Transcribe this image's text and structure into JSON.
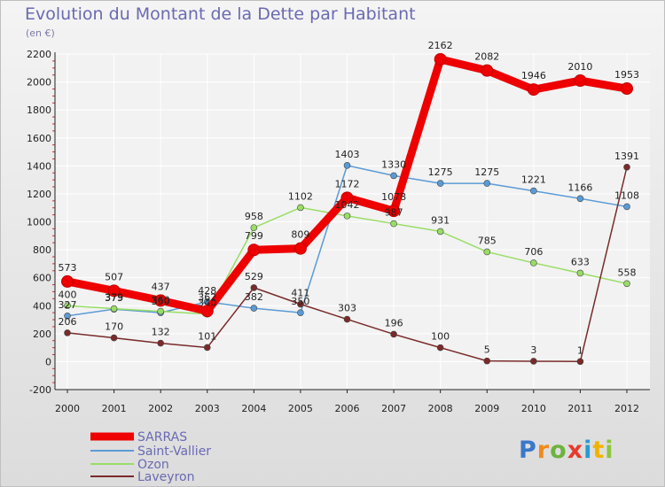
{
  "header": {
    "title": "Evolution du Montant de la Dette par Habitant",
    "subtitle": "(en €)"
  },
  "logo_text": "Proxiti",
  "colors": {
    "background": "#e8e8e8",
    "plot_background": "#f2f2f2",
    "axis": "#222222",
    "grid": "#ffffff",
    "SARRAS": "#ee0000",
    "Saint-Vallier": "#5b9bd5",
    "Ozon": "#99dd66",
    "Laveyron": "#7a2a2a"
  },
  "chart_data": {
    "type": "line",
    "x": [
      "2000",
      "2001",
      "2002",
      "2003",
      "2004",
      "2005",
      "2006",
      "2007",
      "2008",
      "2009",
      "2010",
      "2011",
      "2012"
    ],
    "ylim": [
      -200,
      2200
    ],
    "yticks": [
      -200,
      0,
      200,
      400,
      600,
      800,
      1000,
      1200,
      1400,
      1600,
      1800,
      2000,
      2200
    ],
    "grid": true,
    "legend_position": "bottom-left",
    "series": [
      {
        "name": "SARRAS",
        "values": [
          573,
          507,
          437,
          362,
          799,
          809,
          1172,
          1078,
          2162,
          2082,
          1946,
          2010,
          1953
        ],
        "labels": [
          "573",
          "507",
          "437",
          "362",
          "799",
          "809",
          "1172",
          "1078",
          "2162",
          "2082",
          "1946",
          "2010",
          "1953"
        ]
      },
      {
        "name": "Saint-Vallier",
        "values": [
          327,
          375,
          350,
          428,
          382,
          350,
          1403,
          1330,
          1275,
          1275,
          1221,
          1166,
          1108
        ],
        "labels": [
          "327",
          "375",
          "350",
          "428",
          "382",
          "350",
          "1403",
          "1330",
          "1275",
          "1275",
          "1221",
          "1166",
          "1108"
        ]
      },
      {
        "name": "Ozon",
        "values": [
          400,
          379,
          360,
          340,
          958,
          1102,
          1042,
          987,
          931,
          785,
          706,
          633,
          558
        ],
        "labels": [
          "400",
          "379",
          "360",
          "340",
          "958",
          "1102",
          "1042",
          "987",
          "931",
          "785",
          "706",
          "633",
          "558"
        ]
      },
      {
        "name": "Laveyron",
        "values": [
          206,
          170,
          132,
          101,
          529,
          411,
          303,
          196,
          100,
          5,
          3,
          1,
          1391
        ],
        "labels": [
          "206",
          "170",
          "132",
          "101",
          "529",
          "411",
          "303",
          "196",
          "100",
          "5",
          "3",
          "1",
          "1391"
        ]
      }
    ]
  }
}
